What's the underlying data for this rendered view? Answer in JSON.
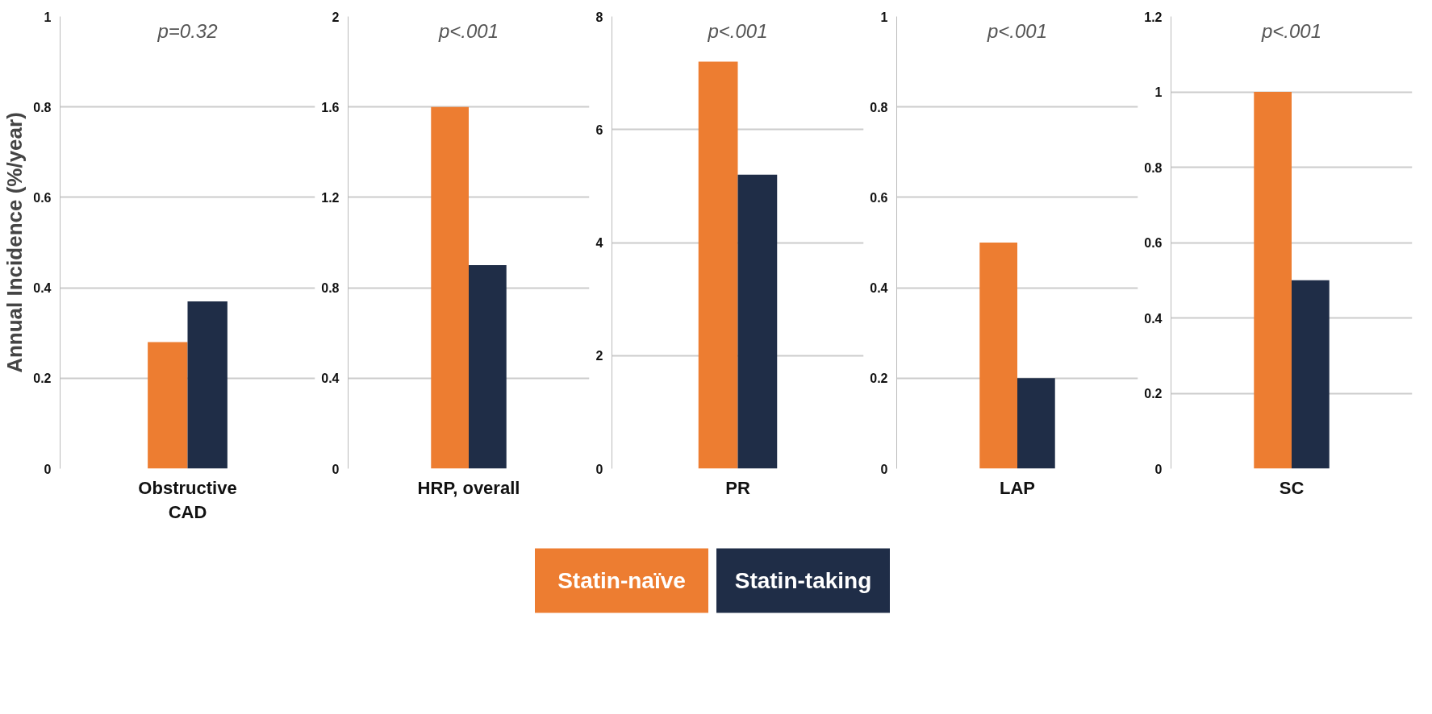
{
  "chart_data": [
    {
      "type": "bar",
      "ylabel": "Annual Incidence (%/year)",
      "categories": [
        "Obstructive CAD"
      ],
      "annotations": [
        "p=0.32"
      ],
      "ylim": [
        0,
        1
      ],
      "yticks": [
        0,
        0.2,
        0.4,
        0.6,
        0.8,
        1
      ],
      "grid": "y",
      "legend": "bottom",
      "series": [
        {
          "name": "Statin-naïve",
          "color": "#ed7d31",
          "values": [
            0.28
          ]
        },
        {
          "name": "Statin-taking",
          "color": "#1f2d47",
          "values": [
            0.37
          ]
        }
      ]
    },
    {
      "type": "bar",
      "categories": [
        "HRP, overall"
      ],
      "annotations": [
        "p<.001"
      ],
      "ylim": [
        0,
        2
      ],
      "yticks": [
        0,
        0.4,
        0.8,
        1.2,
        1.6,
        2
      ],
      "grid": "y",
      "series": [
        {
          "color": "#ed7d31",
          "values": [
            1.6
          ]
        },
        {
          "color": "#1f2d47",
          "values": [
            0.9
          ]
        }
      ]
    },
    {
      "type": "bar",
      "categories": [
        "PR"
      ],
      "annotations": [
        "p<.001"
      ],
      "ylim": [
        0,
        8
      ],
      "yticks": [
        0,
        2,
        4,
        6,
        8
      ],
      "grid": "y",
      "series": [
        {
          "color": "#ed7d31",
          "values": [
            7.2
          ]
        },
        {
          "color": "#1f2d47",
          "values": [
            5.2
          ]
        }
      ]
    },
    {
      "type": "bar",
      "categories": [
        "LAP"
      ],
      "annotations": [
        "p<.001"
      ],
      "ylim": [
        0,
        1
      ],
      "yticks": [
        0,
        0.2,
        0.4,
        0.6,
        0.8,
        1
      ],
      "grid": "y",
      "series": [
        {
          "color": "#ed7d31",
          "values": [
            0.5
          ]
        },
        {
          "color": "#1f2d47",
          "values": [
            0.2
          ]
        }
      ]
    },
    {
      "type": "bar",
      "categories": [
        "SC"
      ],
      "annotations": [
        "p<.001"
      ],
      "ylim": [
        0,
        1.2
      ],
      "yticks": [
        0,
        0.2,
        0.4,
        0.6,
        0.8,
        1,
        1.2
      ],
      "grid": "y",
      "series": [
        {
          "color": "#ed7d31",
          "values": [
            1.0
          ]
        },
        {
          "color": "#1f2d47",
          "values": [
            0.5
          ]
        }
      ]
    }
  ]
}
